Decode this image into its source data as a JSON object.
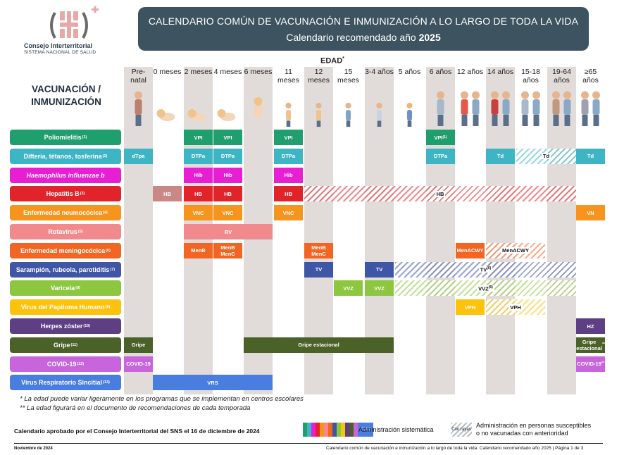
{
  "logo": {
    "line1": "Consejo Interterritorial",
    "line2": "SISTEMA NACIONAL DE SALUD"
  },
  "banner": {
    "line1": "CALENDARIO COMÚN DE VACUNACIÓN E INMUNIZACIÓN A LO LARGO DE TODA LA VIDA",
    "line2_prefix": "Calendario recomendado año ",
    "line2_year": "2025"
  },
  "edad_label": "EDAD",
  "edad_mark": "*",
  "vac_title": "VACUNACIÓN / INMUNIZACIÓN",
  "columns": [
    {
      "label": "Pre-natal"
    },
    {
      "label": "0 meses"
    },
    {
      "label": "2 meses"
    },
    {
      "label": "4 meses"
    },
    {
      "label": "6 meses"
    },
    {
      "label": "11 meses"
    },
    {
      "label": "12 meses"
    },
    {
      "label": "15 meses"
    },
    {
      "label": "3-4 años"
    },
    {
      "label": "5 años"
    },
    {
      "label": "6 años"
    },
    {
      "label": "12 años"
    },
    {
      "label": "14 años"
    },
    {
      "label": "15-18 años"
    },
    {
      "label": "19-64 años"
    },
    {
      "label": "≥65 años"
    }
  ],
  "rows": [
    {
      "label": "Poliomielitis",
      "note": "(1)",
      "color": "#1f9e6e",
      "cells": [
        {
          "c": 2,
          "t": "VPI"
        },
        {
          "c": 3,
          "t": "VPI"
        },
        {
          "c": 5,
          "t": "VPI"
        },
        {
          "c": 10,
          "t": "VPI",
          "sup": "(1)"
        }
      ]
    },
    {
      "label": "Difteria, tétanos, tosferina",
      "note": "(2)",
      "color": "#3eb5c4",
      "cells": [
        {
          "c": 0,
          "t": "dTpa"
        },
        {
          "c": 2,
          "t": "DTPa"
        },
        {
          "c": 3,
          "t": "DTPa"
        },
        {
          "c": 5,
          "t": "DTPa"
        },
        {
          "c": 10,
          "t": "DTPa"
        },
        {
          "c": 12,
          "t": "Td"
        },
        {
          "c": 15,
          "t": "Td"
        }
      ],
      "hatch": {
        "from": 13,
        "to": 14,
        "t": "Td"
      }
    },
    {
      "label": "Haemophilus influenzae b",
      "note": "",
      "italic": true,
      "color": "#e81ed2",
      "cells": [
        {
          "c": 2,
          "t": "Hib"
        },
        {
          "c": 3,
          "t": "Hib"
        },
        {
          "c": 5,
          "t": "Hib"
        }
      ]
    },
    {
      "label": "Hepatitis B",
      "note": "(3)",
      "color": "#e2232a",
      "cells": [
        {
          "c": 1,
          "t": "HB",
          "color": "#c98786"
        },
        {
          "c": 2,
          "t": "HB"
        },
        {
          "c": 3,
          "t": "HB"
        },
        {
          "c": 5,
          "t": "HB"
        }
      ],
      "hatch": {
        "from": 6,
        "to": 14,
        "t": "HB"
      }
    },
    {
      "label": "Enfermedad neumocócica",
      "note": "(4)",
      "color": "#f7941d",
      "cells": [
        {
          "c": 2,
          "t": "VNC"
        },
        {
          "c": 3,
          "t": "VNC"
        },
        {
          "c": 5,
          "t": "VNC"
        },
        {
          "c": 15,
          "t": "VN"
        }
      ]
    },
    {
      "label": "Rotavirus",
      "note": "(5)",
      "color": "#f08a8c",
      "cells": [
        {
          "span": [
            2,
            4
          ],
          "t": "RV"
        }
      ]
    },
    {
      "label": "Enfermedad meningocócica",
      "note": "(6)",
      "color": "#f26522",
      "cells": [
        {
          "c": 2,
          "t": "MenB"
        },
        {
          "c": 3,
          "t": "MenB MenC"
        },
        {
          "c": 6,
          "t": "MenB MenC"
        },
        {
          "c": 11,
          "t": "MenACWY"
        }
      ],
      "hatch": {
        "from": 12,
        "to": 13,
        "t": "MenACWY"
      }
    },
    {
      "label": "Sarampión, rubeola, parotiditis",
      "note": "(7)",
      "color": "#3f56a6",
      "cells": [
        {
          "c": 6,
          "t": "TV"
        },
        {
          "c": 8,
          "t": "TV"
        }
      ],
      "hatch": {
        "from": 9,
        "to": 14,
        "t": "TV",
        "sup": "(6)"
      }
    },
    {
      "label": "Varicela",
      "note": "(8)",
      "color": "#8dc63f",
      "cells": [
        {
          "c": 7,
          "t": "VVZ"
        },
        {
          "c": 8,
          "t": "VVZ"
        }
      ],
      "hatch": {
        "from": 9,
        "to": 14,
        "t": "VVZ",
        "sup": "(6)"
      }
    },
    {
      "label": "Virus del Papiloma Humano",
      "note": "(9)",
      "color": "#fdc20d",
      "cells": [
        {
          "c": 11,
          "t": "VPH"
        }
      ],
      "hatch": {
        "from": 12,
        "to": 13,
        "t": "VPH"
      }
    },
    {
      "label": "Herpes zóster",
      "note": "(10)",
      "color": "#5e3f84",
      "cells": [
        {
          "c": 15,
          "t": "HZ"
        }
      ]
    },
    {
      "label": "Gripe",
      "note": "(11)",
      "color": "#4a6127",
      "cells": [
        {
          "c": 0,
          "t": "Gripe"
        },
        {
          "span": [
            4,
            8
          ],
          "t": "Gripe estacional"
        },
        {
          "c": 15,
          "t": "Gripe estacional",
          "sup": "**"
        }
      ]
    },
    {
      "label": "COVID-19",
      "note": "(12)",
      "color": "#c865dd",
      "cells": [
        {
          "c": 0,
          "t": "COVID-19"
        },
        {
          "c": 15,
          "t": "COVID-19",
          "sup": "**"
        }
      ]
    },
    {
      "label": "Virus Respiratorio Sincitial",
      "note": "(13)",
      "color": "#4a7de0",
      "cells": [
        {
          "span": [
            1,
            4
          ],
          "t": "VRS"
        }
      ]
    }
  ],
  "notes": [
    "* La edad puede variar ligeramente en los programas que se implementan en centros escolares",
    "** La edad figurará en el documento de recomendaciones de cada temporada"
  ],
  "footer": {
    "approved": "Calendario aprobado por el Consejo Interterritorial del SNS el 16 de diciembre de 2024",
    "legend_color_word": "Color",
    "legend1": "Administración sistemática",
    "legend_hatch_word": "Con rayas",
    "legend2_line1": "Administración en personas susceptibles",
    "legend2_line2": "o no vacunadas con anterioridad",
    "date": "Noviembre de 2024",
    "caption": "Calendario común de vacunación e inmunización a lo largo de toda la vida. Calendario recomendado año 2025 | Página 1 de 3"
  },
  "legend_colors": [
    "#1f9e6e",
    "#3eb5c4",
    "#e81ed2",
    "#e2232a",
    "#f7941d",
    "#f08a8c",
    "#f26522",
    "#3f56a6",
    "#8dc63f",
    "#fdc20d",
    "#5e3f84",
    "#4a6127",
    "#c865dd"
  ],
  "icons": [
    "pregnant-woman-icon",
    "newborn-icon",
    "baby-lying-icon",
    "baby-crawling-icon",
    "baby-sitting-icon",
    "toddler-icon",
    "toddler-standing-icon",
    "child-icon",
    "child-girl-icon",
    "child-boy-icon",
    "girl-icon",
    "preteen-couple-icon",
    "teen-couple-icon",
    "teen-group-icon",
    "adult-couple-icon",
    "elderly-couple-icon"
  ]
}
